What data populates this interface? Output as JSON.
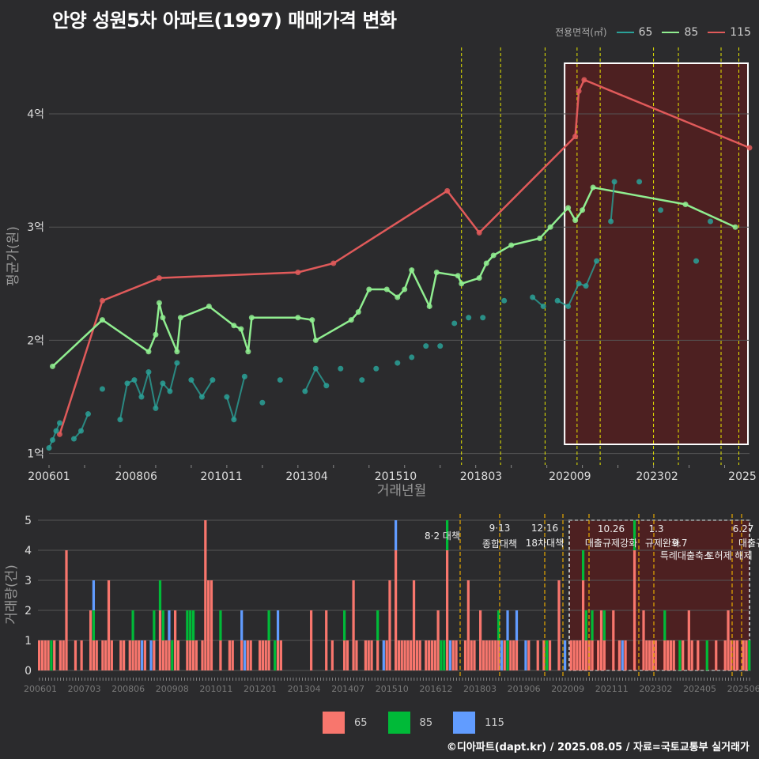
{
  "title": "안양 성원5차 아파트(1997) 매매가격 변화",
  "footer": "©디아파트(dapt.kr) / 2025.08.05 / 자료=국토교통부 실거래가",
  "legend_title": "전용면적(㎡)",
  "colors": {
    "s65": "#2aa198",
    "s85": "#90ee90",
    "s115": "#e05a5a",
    "bar65": "#f8766d",
    "bar85": "#00ba38",
    "bar115": "#619cff",
    "vline": "#e6e600",
    "vline_bottom": "#e6a800"
  },
  "chart_data": [
    {
      "type": "line",
      "title": "안양 성원5차 아파트(1997) 매매가격 변화",
      "xlabel": "거래년월",
      "ylabel": "평균가(원)",
      "x_tick_labels": [
        "200601",
        "200806",
        "201011",
        "201304",
        "201510",
        "201803",
        "202009",
        "202302",
        "2025"
      ],
      "y_tick_labels": [
        "1억",
        "2억",
        "3억",
        "4억"
      ],
      "ylim": [
        0.9,
        4.6
      ],
      "legend": [
        "65",
        "85",
        "115"
      ],
      "highlight_region": {
        "from": 2020.5,
        "to": 2025.7
      },
      "policy_lines": [
        2017.6,
        2018.7,
        2019.95,
        2020.85,
        2021.5,
        2023.0,
        2023.7,
        2024.9,
        2025.4
      ],
      "series": [
        {
          "name": "115",
          "points": [
            [
              2006.3,
              1.17
            ],
            [
              2007.5,
              2.35
            ],
            [
              2009.1,
              2.55
            ],
            [
              2013.0,
              2.6
            ],
            [
              2014.0,
              2.68
            ],
            [
              2017.2,
              3.32
            ],
            [
              2018.1,
              2.95
            ],
            [
              2020.8,
              3.8
            ],
            [
              2020.9,
              4.2
            ],
            [
              2021.05,
              4.3
            ],
            [
              2025.7,
              3.7
            ]
          ]
        },
        {
          "name": "85",
          "points": [
            [
              2006.1,
              1.77
            ],
            [
              2007.5,
              2.18
            ],
            [
              2008.8,
              1.9
            ],
            [
              2009.0,
              2.05
            ],
            [
              2009.1,
              2.33
            ],
            [
              2009.2,
              2.2
            ],
            [
              2009.6,
              1.9
            ],
            [
              2009.7,
              2.2
            ],
            [
              2010.5,
              2.3
            ],
            [
              2011.2,
              2.13
            ],
            [
              2011.4,
              2.1
            ],
            [
              2011.6,
              1.9
            ],
            [
              2011.7,
              2.2
            ],
            [
              2013.0,
              2.2
            ],
            [
              2013.4,
              2.18
            ],
            [
              2013.5,
              2.0
            ],
            [
              2014.5,
              2.18
            ],
            [
              2014.7,
              2.25
            ],
            [
              2015.0,
              2.45
            ],
            [
              2015.5,
              2.45
            ],
            [
              2015.8,
              2.38
            ],
            [
              2016.0,
              2.45
            ],
            [
              2016.2,
              2.62
            ],
            [
              2016.7,
              2.3
            ],
            [
              2016.9,
              2.6
            ],
            [
              2017.5,
              2.57
            ],
            [
              2017.6,
              2.5
            ],
            [
              2018.1,
              2.55
            ],
            [
              2018.3,
              2.68
            ],
            [
              2018.5,
              2.75
            ],
            [
              2019.0,
              2.84
            ],
            [
              2019.8,
              2.9
            ],
            [
              2020.1,
              3.0
            ],
            [
              2020.6,
              3.17
            ],
            [
              2020.8,
              3.06
            ],
            [
              2021.0,
              3.15
            ],
            [
              2021.3,
              3.35
            ],
            [
              2023.9,
              3.2
            ],
            [
              2025.3,
              3.0
            ]
          ]
        },
        {
          "name": "65",
          "points": [
            [
              2006.0,
              1.05
            ],
            [
              2006.1,
              1.12
            ],
            [
              2006.2,
              1.2
            ],
            [
              2006.3,
              1.27
            ],
            [
              2006.7,
              1.13
            ],
            [
              2006.9,
              1.2
            ],
            [
              2007.1,
              1.35
            ],
            [
              2007.5,
              1.57
            ],
            [
              2008.0,
              1.3
            ],
            [
              2008.2,
              1.62
            ],
            [
              2008.4,
              1.65
            ],
            [
              2008.6,
              1.5
            ],
            [
              2008.8,
              1.72
            ],
            [
              2009.0,
              1.4
            ],
            [
              2009.2,
              1.62
            ],
            [
              2009.4,
              1.55
            ],
            [
              2009.6,
              1.8
            ],
            [
              2010.0,
              1.65
            ],
            [
              2010.3,
              1.5
            ],
            [
              2010.6,
              1.65
            ],
            [
              2011.0,
              1.5
            ],
            [
              2011.2,
              1.3
            ],
            [
              2011.5,
              1.68
            ],
            [
              2012.0,
              1.45
            ],
            [
              2012.5,
              1.65
            ],
            [
              2013.2,
              1.55
            ],
            [
              2013.5,
              1.75
            ],
            [
              2013.8,
              1.6
            ],
            [
              2014.2,
              1.75
            ],
            [
              2014.8,
              1.65
            ],
            [
              2015.2,
              1.75
            ],
            [
              2015.8,
              1.8
            ],
            [
              2016.2,
              1.85
            ],
            [
              2016.6,
              1.95
            ],
            [
              2017.0,
              1.95
            ],
            [
              2017.4,
              2.15
            ],
            [
              2017.8,
              2.2
            ],
            [
              2018.2,
              2.2
            ],
            [
              2018.8,
              2.35
            ],
            [
              2019.6,
              2.38
            ],
            [
              2019.9,
              2.3
            ],
            [
              2020.3,
              2.35
            ],
            [
              2020.6,
              2.3
            ],
            [
              2020.9,
              2.5
            ],
            [
              2021.1,
              2.48
            ],
            [
              2021.4,
              2.7
            ],
            [
              2021.8,
              3.05
            ],
            [
              2021.9,
              3.4
            ],
            [
              2022.6,
              3.4
            ],
            [
              2023.2,
              3.15
            ],
            [
              2024.2,
              2.7
            ],
            [
              2024.6,
              3.05
            ]
          ]
        }
      ]
    },
    {
      "type": "bar",
      "xlabel": "",
      "ylabel": "거래량(건)",
      "ylim": [
        0,
        5
      ],
      "y_tick_labels": [
        "0",
        "1",
        "2",
        "3",
        "4",
        "5"
      ],
      "x_tick_labels": [
        "200601",
        "200703",
        "200806",
        "200908",
        "201011",
        "201201",
        "201304",
        "201407",
        "201510",
        "201612",
        "201803",
        "201906",
        "202009",
        "202111",
        "202302",
        "202405",
        "202506"
      ],
      "policy_labels": [
        {
          "date": "8·2 대책",
          "label": ""
        },
        {
          "date": "9·13",
          "label": "종합대책"
        },
        {
          "date": "12·16",
          "label": "18차대책"
        },
        {
          "date": "10.26",
          "label": "대출규제강화"
        },
        {
          "date": "1.3",
          "label": "규제완화"
        },
        {
          "date": "9.7",
          "label": "특례대출축소"
        },
        {
          "date": "",
          "label": "토허제 해제"
        },
        {
          "date": "6.27",
          "label": "대출규제"
        }
      ],
      "series_note": "stacked monthly counts for 65 / 85 / 115"
    }
  ]
}
